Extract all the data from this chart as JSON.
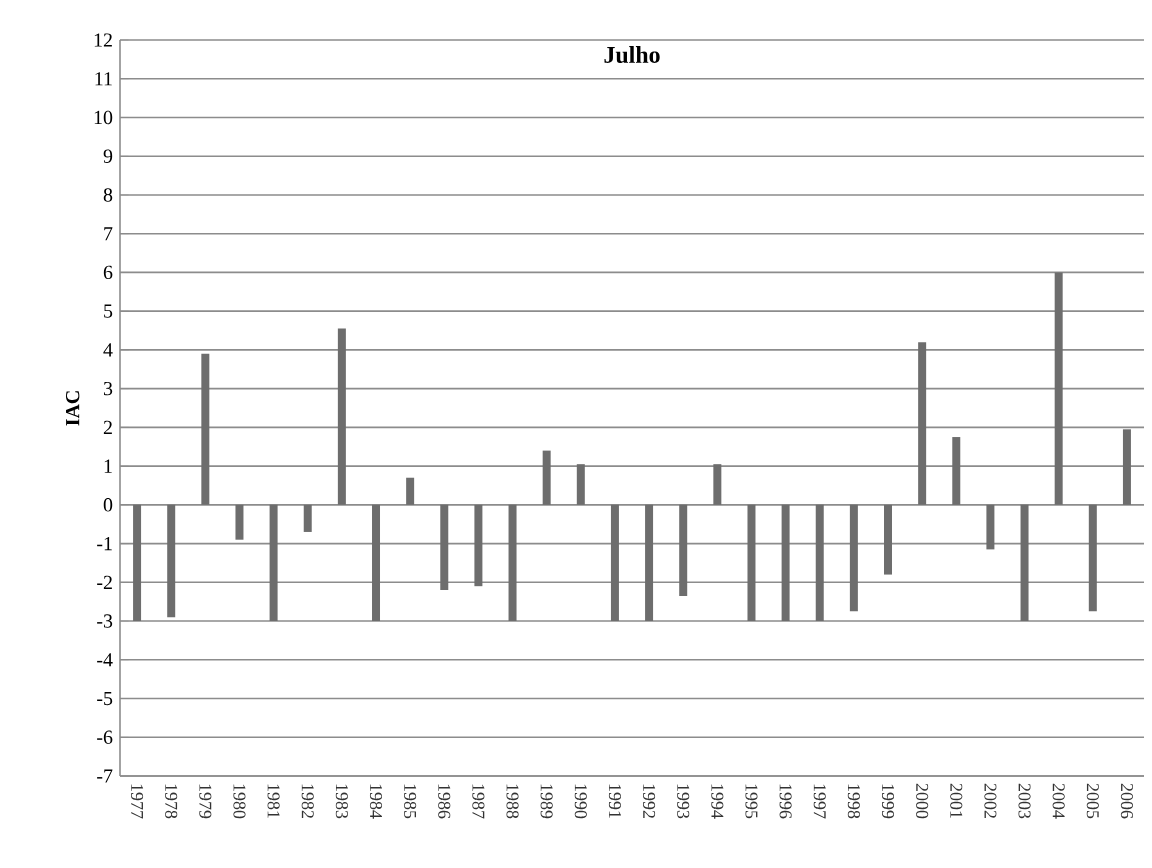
{
  "chart_data": {
    "type": "bar",
    "title": "Julho",
    "ylabel": "IAC",
    "categories": [
      "1977",
      "1978",
      "1979",
      "1980",
      "1981",
      "1982",
      "1983",
      "1984",
      "1985",
      "1986",
      "1987",
      "1988",
      "1989",
      "1990",
      "1991",
      "1992",
      "1993",
      "1994",
      "1995",
      "1996",
      "1997",
      "1998",
      "1999",
      "2000",
      "2001",
      "2002",
      "2003",
      "2004",
      "2005",
      "2006"
    ],
    "values": [
      -3,
      -2.9,
      3.9,
      -0.9,
      -3,
      -0.7,
      4.55,
      -3,
      0.7,
      -2.2,
      -2.1,
      -3,
      1.4,
      1.05,
      -3,
      -3,
      -2.35,
      1.05,
      -3,
      -3,
      -3,
      -2.75,
      -1.8,
      4.2,
      1.75,
      -1.15,
      -3,
      6,
      -2.75,
      1.95
    ],
    "color": "#6d6d6d",
    "ylim": [
      -7,
      12
    ],
    "yticks": [
      -7,
      -6,
      -5,
      -4,
      -3,
      -2,
      -1,
      0,
      1,
      2,
      3,
      4,
      5,
      6,
      7,
      8,
      9,
      10,
      11,
      12
    ],
    "grid": "y"
  }
}
